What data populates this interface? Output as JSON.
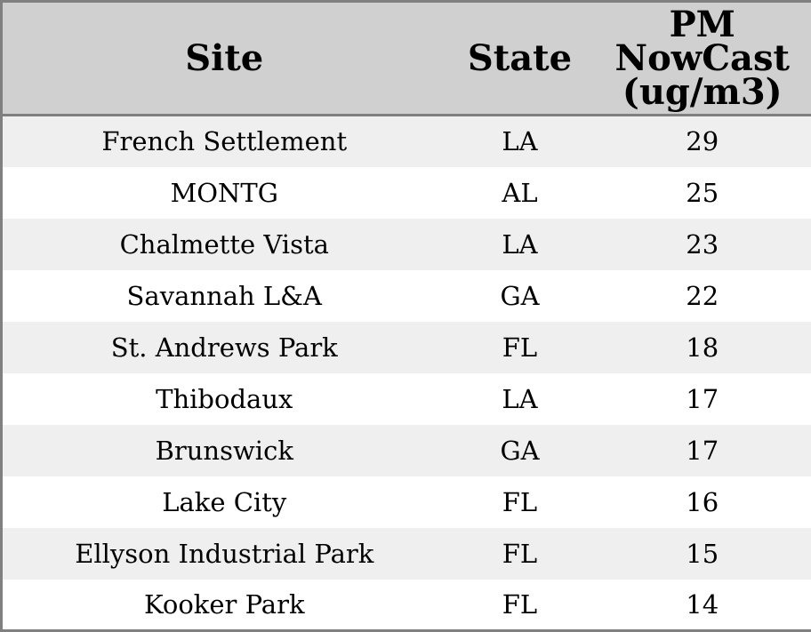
{
  "chart_data": {
    "type": "table",
    "columns": [
      "Site",
      "State",
      "PM NowCast (ug/m3)"
    ],
    "rows": [
      [
        "French Settlement",
        "LA",
        29
      ],
      [
        "MONTG",
        "AL",
        25
      ],
      [
        "Chalmette Vista",
        "LA",
        23
      ],
      [
        "Savannah L&A",
        "GA",
        22
      ],
      [
        "St. Andrews Park",
        "FL",
        18
      ],
      [
        "Thibodaux",
        "LA",
        17
      ],
      [
        "Brunswick",
        "GA",
        17
      ],
      [
        "Lake City",
        "FL",
        16
      ],
      [
        "Ellyson Industrial Park",
        "FL",
        15
      ],
      [
        "Kooker Park",
        "FL",
        14
      ]
    ],
    "layout": {
      "striped": true,
      "first_data_row_shaded": true,
      "cell_alignment": "center",
      "gridlines": "none-internal"
    }
  },
  "style": {
    "header_bg": "#d0d0d0",
    "row_stripe_bg": "#efefef",
    "row_plain_bg": "#ffffff",
    "border_color": "#808080",
    "text_color": "#000000"
  }
}
